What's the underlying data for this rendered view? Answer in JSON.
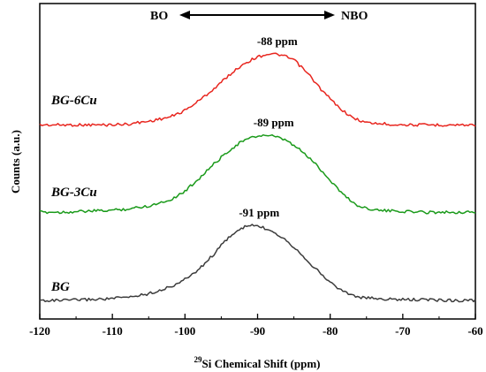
{
  "chart_data": {
    "type": "line",
    "xlabel_sup": "29",
    "xlabel_main": "Si Chemical Shift (ppm)",
    "ylabel": "Counts (a.u.)",
    "xlim": [
      -120,
      -60
    ],
    "x_ticks": [
      -120,
      -110,
      -100,
      -90,
      -80,
      -70,
      -60
    ],
    "y_ticks_shown": false,
    "grid": false,
    "annotation_arrow": {
      "left": "BO",
      "right": "NBO"
    },
    "series": [
      {
        "name": "BG-6Cu",
        "color": "#e8261f",
        "peak_label": "-88 ppm",
        "x": [
          -120,
          -117,
          -114,
          -111,
          -108,
          -105,
          -102,
          -100,
          -98,
          -96,
          -94,
          -92,
          -90,
          -88.5,
          -87,
          -85,
          -83,
          -81,
          -79,
          -77,
          -75,
          -72,
          -69,
          -66,
          -63,
          -60
        ],
        "y": [
          0.02,
          0.02,
          0.02,
          0.02,
          0.03,
          0.07,
          0.13,
          0.22,
          0.36,
          0.52,
          0.7,
          0.86,
          0.96,
          1.0,
          0.99,
          0.92,
          0.72,
          0.48,
          0.28,
          0.12,
          0.05,
          0.03,
          0.02,
          0.02,
          0.02,
          0.02
        ]
      },
      {
        "name": "BG-3Cu",
        "color": "#1a9a1a",
        "peak_label": "-89 ppm",
        "x": [
          -120,
          -117,
          -114,
          -111,
          -108,
          -105,
          -102,
          -100,
          -98,
          -96,
          -94,
          -92,
          -90,
          -89,
          -88,
          -86,
          -84,
          -82,
          -80,
          -78,
          -76,
          -73,
          -70,
          -67,
          -63,
          -60
        ],
        "y": [
          0.01,
          0.01,
          0.02,
          0.03,
          0.05,
          0.09,
          0.17,
          0.28,
          0.45,
          0.63,
          0.8,
          0.93,
          0.99,
          1.0,
          0.99,
          0.93,
          0.8,
          0.63,
          0.42,
          0.22,
          0.08,
          0.03,
          0.02,
          0.01,
          0.01,
          0.01
        ]
      },
      {
        "name": "BG",
        "color": "#3c3c3c",
        "peak_label": "-91 ppm",
        "x": [
          -120,
          -117,
          -114,
          -111,
          -108,
          -105,
          -102,
          -100,
          -98,
          -96,
          -94,
          -92,
          -91,
          -90,
          -88,
          -86,
          -84,
          -82,
          -80,
          -78,
          -76,
          -73,
          -70,
          -67,
          -63,
          -60
        ],
        "y": [
          0.0,
          0.0,
          0.01,
          0.02,
          0.04,
          0.09,
          0.18,
          0.28,
          0.42,
          0.62,
          0.84,
          0.97,
          1.0,
          0.99,
          0.93,
          0.8,
          0.62,
          0.42,
          0.24,
          0.11,
          0.04,
          0.02,
          0.01,
          0.01,
          0.0,
          0.0
        ]
      }
    ]
  }
}
